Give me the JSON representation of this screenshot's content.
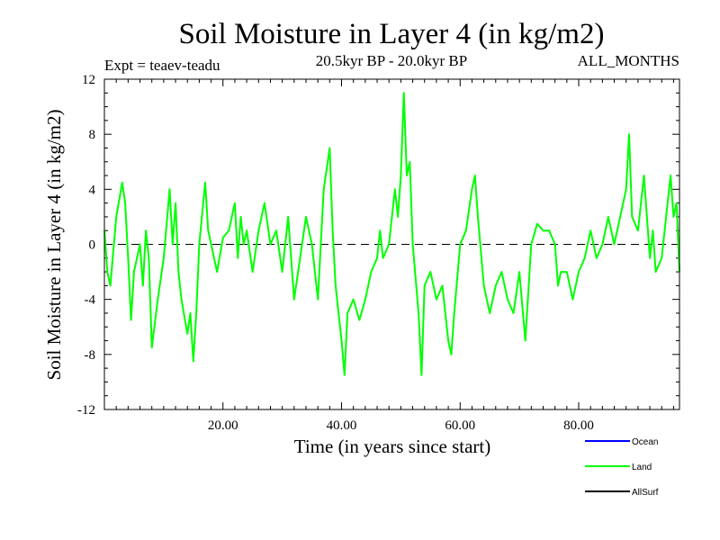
{
  "chart_data": {
    "type": "line",
    "title": "Soil Moisture in Layer 4 (in kg/m2)",
    "subtitle_left": "Expt = teaev-teadu",
    "subtitle_center": "20.5kyr BP - 20.0kyr BP",
    "subtitle_right": "ALL_MONTHS",
    "xlabel": "Time (in years since start)",
    "ylabel": "Soil Moisture in Layer 4 (in kg/m2)",
    "xlim": [
      0,
      97
    ],
    "ylim": [
      -12,
      12
    ],
    "x_ticks": [
      20,
      40,
      60,
      80
    ],
    "x_tick_labels": [
      "20.00",
      "40.00",
      "60.00",
      "80.00"
    ],
    "y_ticks": [
      -12,
      -8,
      -4,
      0,
      4,
      8,
      12
    ],
    "y_tick_labels": [
      "-12",
      "-8",
      "-4",
      "0",
      "4",
      "8",
      "12"
    ],
    "reference_line": {
      "y": 0,
      "style": "dashed"
    },
    "legend": [
      {
        "name": "Ocean",
        "color": "#0000ff"
      },
      {
        "name": "Land",
        "color": "#00ff00"
      },
      {
        "name": "AllSurf",
        "color": "#000000"
      }
    ],
    "series": [
      {
        "name": "Land",
        "color": "#00ff00",
        "points": [
          [
            0,
            1
          ],
          [
            0.5,
            -2
          ],
          [
            1,
            -3
          ],
          [
            2,
            2
          ],
          [
            3,
            4.5
          ],
          [
            3.5,
            3
          ],
          [
            4,
            -1
          ],
          [
            4.5,
            -5.5
          ],
          [
            5,
            -2
          ],
          [
            6,
            0
          ],
          [
            6.5,
            -3
          ],
          [
            7,
            1
          ],
          [
            7.5,
            -1
          ],
          [
            8,
            -7.5
          ],
          [
            9,
            -4
          ],
          [
            10,
            -1
          ],
          [
            11,
            4
          ],
          [
            11.5,
            0
          ],
          [
            12,
            3
          ],
          [
            12.5,
            -2
          ],
          [
            13,
            -4
          ],
          [
            14,
            -6.5
          ],
          [
            14.5,
            -5
          ],
          [
            15,
            -8.5
          ],
          [
            15.5,
            -5
          ],
          [
            16,
            0
          ],
          [
            17,
            4.5
          ],
          [
            17.5,
            1
          ],
          [
            18,
            0
          ],
          [
            19,
            -2
          ],
          [
            20,
            0.5
          ],
          [
            21,
            1
          ],
          [
            22,
            3
          ],
          [
            22.5,
            -1
          ],
          [
            23,
            2
          ],
          [
            23.5,
            0
          ],
          [
            24,
            1
          ],
          [
            25,
            -2
          ],
          [
            26,
            1
          ],
          [
            27,
            3
          ],
          [
            28,
            0
          ],
          [
            29,
            1
          ],
          [
            30,
            -2
          ],
          [
            31,
            2
          ],
          [
            32,
            -4
          ],
          [
            33,
            -1
          ],
          [
            34,
            2
          ],
          [
            35,
            0
          ],
          [
            36,
            -4
          ],
          [
            37,
            4
          ],
          [
            38,
            7
          ],
          [
            38.5,
            1
          ],
          [
            39,
            -3
          ],
          [
            40,
            -7
          ],
          [
            40.5,
            -9.5
          ],
          [
            41,
            -5
          ],
          [
            42,
            -4
          ],
          [
            43,
            -5.5
          ],
          [
            44,
            -4
          ],
          [
            45,
            -2
          ],
          [
            46,
            -1
          ],
          [
            46.5,
            1
          ],
          [
            47,
            -1
          ],
          [
            48,
            0
          ],
          [
            49,
            4
          ],
          [
            49.5,
            2
          ],
          [
            50,
            5
          ],
          [
            50.5,
            11
          ],
          [
            51,
            5
          ],
          [
            51.5,
            6
          ],
          [
            52,
            0
          ],
          [
            53,
            -5
          ],
          [
            53.5,
            -9.5
          ],
          [
            54,
            -3
          ],
          [
            55,
            -2
          ],
          [
            56,
            -4
          ],
          [
            57,
            -3
          ],
          [
            58,
            -7
          ],
          [
            58.5,
            -8
          ],
          [
            59,
            -5
          ],
          [
            60,
            0
          ],
          [
            61,
            1
          ],
          [
            62,
            4
          ],
          [
            62.5,
            5
          ],
          [
            63,
            2
          ],
          [
            64,
            -3
          ],
          [
            65,
            -5
          ],
          [
            66,
            -3
          ],
          [
            67,
            -2
          ],
          [
            68,
            -4
          ],
          [
            69,
            -5
          ],
          [
            70,
            -2
          ],
          [
            71,
            -7
          ],
          [
            72,
            0
          ],
          [
            73,
            1.5
          ],
          [
            74,
            1
          ],
          [
            75,
            1
          ],
          [
            76,
            0
          ],
          [
            76.5,
            -3
          ],
          [
            77,
            -2
          ],
          [
            78,
            -2
          ],
          [
            79,
            -4
          ],
          [
            80,
            -2
          ],
          [
            81,
            -1
          ],
          [
            82,
            1
          ],
          [
            83,
            -1
          ],
          [
            84,
            0
          ],
          [
            85,
            2
          ],
          [
            86,
            0
          ],
          [
            87,
            2
          ],
          [
            88,
            4
          ],
          [
            88.5,
            8
          ],
          [
            89,
            2
          ],
          [
            90,
            1
          ],
          [
            91,
            5
          ],
          [
            92,
            -1
          ],
          [
            92.5,
            1
          ],
          [
            93,
            -2
          ],
          [
            94,
            -1
          ],
          [
            95,
            3
          ],
          [
            95.5,
            5
          ],
          [
            96,
            2
          ],
          [
            96.5,
            3
          ],
          [
            97,
            -2
          ]
        ]
      }
    ]
  }
}
